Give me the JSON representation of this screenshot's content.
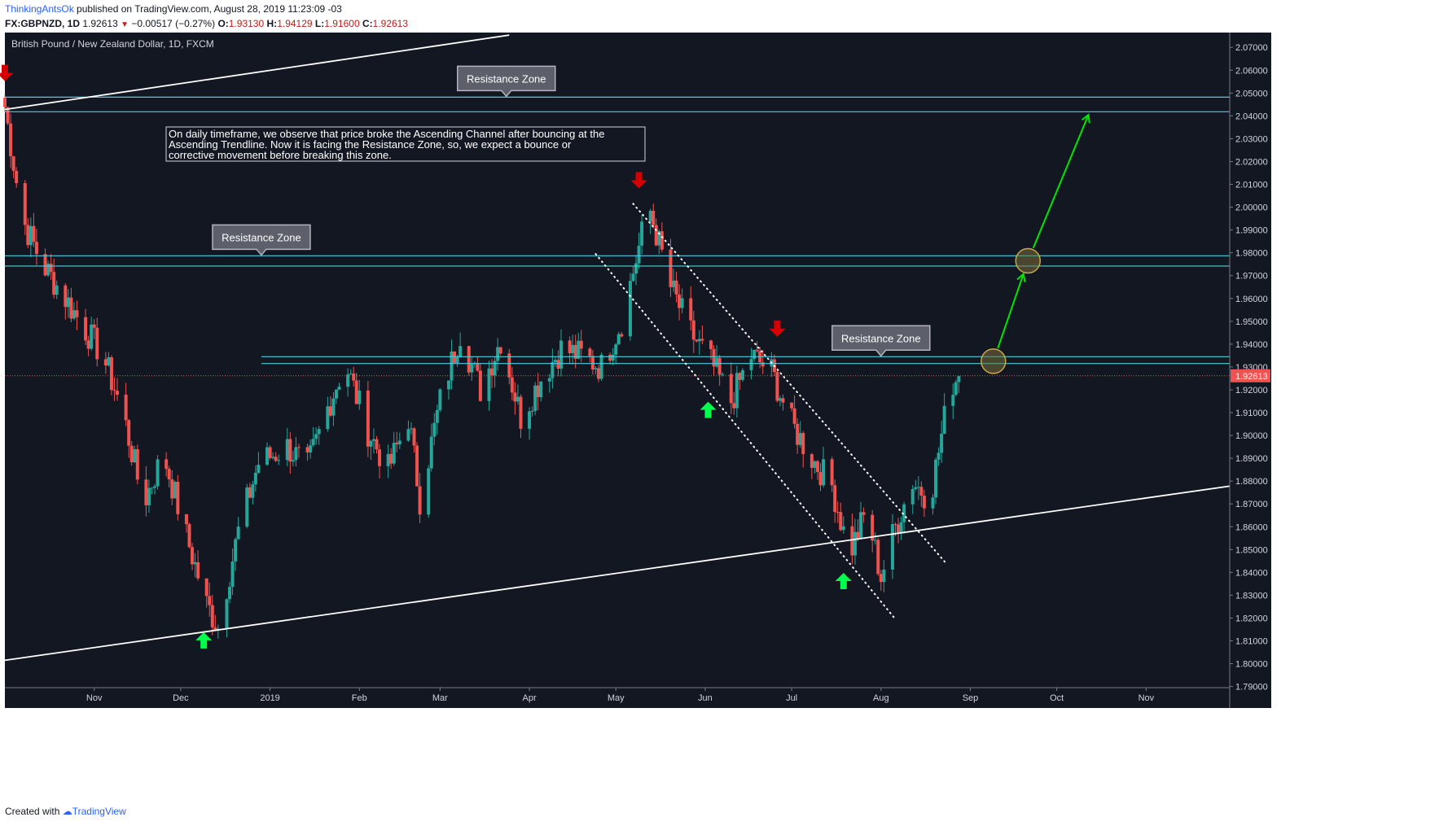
{
  "header": {
    "author": "ThinkingAntsOk",
    "published": "published on TradingView.com, August 28, 2019 11:23:09 -03",
    "symbol": "FX:GBPNZD, 1D",
    "last": "1.92613",
    "change": "−0.00517 (−0.27%)",
    "open_label": "O:",
    "open": "1.93130",
    "high_label": "H:",
    "high": "1.94129",
    "low_label": "L:",
    "low": "1.91600",
    "close_label": "C:",
    "close": "1.92613"
  },
  "footer": {
    "created_with": "Created with",
    "brand": "TradingView"
  },
  "colors": {
    "background": "#131722",
    "up": "#26a69a",
    "down": "#ef5350",
    "zone": "#4dd0e1",
    "trendline": "#ffffff",
    "projection": "#00e600",
    "signal_up": "#00ff4c",
    "signal_down": "#d50000",
    "price_tag": "#ef5350"
  },
  "chart_data": {
    "type": "candlestick",
    "title": "British Pound / New Zealand Dollar, 1D, FXCM",
    "x_ticks": [
      "Nov",
      "Dec",
      "2019",
      "Feb",
      "Mar",
      "Apr",
      "May",
      "Jun",
      "Jul",
      "Aug",
      "Sep",
      "Oct",
      "Nov"
    ],
    "y_ticks": [
      "2.07000",
      "2.06000",
      "2.05000",
      "2.04000",
      "2.03000",
      "2.02000",
      "2.01000",
      "2.00000",
      "1.99000",
      "1.98000",
      "1.97000",
      "1.96000",
      "1.95000",
      "1.94000",
      "1.93000",
      "1.92000",
      "1.91000",
      "1.90000",
      "1.89000",
      "1.88000",
      "1.87000",
      "1.86000",
      "1.85000",
      "1.84000",
      "1.83000",
      "1.82000",
      "1.81000",
      "1.80000",
      "1.79000"
    ],
    "ylim": [
      1.7895,
      2.0765
    ],
    "x_range": [
      "2018-10-01",
      "2019-11-30"
    ],
    "last_price": "1.92613",
    "anchors": [
      [
        "2018-10-01",
        2.044
      ],
      [
        "2018-10-07",
        1.995
      ],
      [
        "2018-10-14",
        1.975
      ],
      [
        "2018-10-21",
        1.962
      ],
      [
        "2018-10-28",
        1.948
      ],
      [
        "2018-11-04",
        1.935
      ],
      [
        "2018-11-11",
        1.91
      ],
      [
        "2018-11-18",
        1.87
      ],
      [
        "2018-11-25",
        1.892
      ],
      [
        "2018-12-02",
        1.86
      ],
      [
        "2018-12-10",
        1.826
      ],
      [
        "2018-12-14",
        1.816
      ],
      [
        "2018-12-21",
        1.858
      ],
      [
        "2018-12-28",
        1.888
      ],
      [
        "2019-01-07",
        1.895
      ],
      [
        "2019-01-14",
        1.886
      ],
      [
        "2019-01-21",
        1.912
      ],
      [
        "2019-01-27",
        1.932
      ],
      [
        "2019-02-04",
        1.902
      ],
      [
        "2019-02-11",
        1.885
      ],
      [
        "2019-02-18",
        1.908
      ],
      [
        "2019-02-22",
        1.872
      ],
      [
        "2019-03-01",
        1.915
      ],
      [
        "2019-03-08",
        1.945
      ],
      [
        "2019-03-15",
        1.92
      ],
      [
        "2019-03-22",
        1.942
      ],
      [
        "2019-03-29",
        1.908
      ],
      [
        "2019-04-05",
        1.925
      ],
      [
        "2019-04-12",
        1.938
      ],
      [
        "2019-04-19",
        1.935
      ],
      [
        "2019-04-26",
        1.93
      ],
      [
        "2019-05-03",
        1.95
      ],
      [
        "2019-05-10",
        1.988
      ],
      [
        "2019-05-13",
        1.998
      ],
      [
        "2019-05-20",
        1.965
      ],
      [
        "2019-05-27",
        1.945
      ],
      [
        "2019-06-03",
        1.932
      ],
      [
        "2019-06-10",
        1.915
      ],
      [
        "2019-06-17",
        1.935
      ],
      [
        "2019-06-24",
        1.928
      ],
      [
        "2019-07-01",
        1.905
      ],
      [
        "2019-07-08",
        1.89
      ],
      [
        "2019-07-15",
        1.878
      ],
      [
        "2019-07-21",
        1.848
      ],
      [
        "2019-07-27",
        1.867
      ],
      [
        "2019-08-01",
        1.838
      ],
      [
        "2019-08-06",
        1.86
      ],
      [
        "2019-08-12",
        1.88
      ],
      [
        "2019-08-18",
        1.872
      ],
      [
        "2019-08-22",
        1.9
      ],
      [
        "2019-08-25",
        1.922
      ],
      [
        "2019-08-28",
        1.926
      ]
    ],
    "zones": [
      {
        "label": "Resistance Zone",
        "lower": 2.0418,
        "upper": 2.0482,
        "x_start": "2018-10-01",
        "label_at": "2019-03-24"
      },
      {
        "label": "Resistance Zone",
        "lower": 1.9742,
        "upper": 1.9787,
        "x_start": "2018-10-01",
        "label_at": "2018-12-29"
      },
      {
        "label": "Resistance Zone",
        "lower": 1.9315,
        "upper": 1.9345,
        "x_start": "2018-12-29",
        "label_at": "2019-08-01"
      }
    ],
    "trendlines": [
      {
        "from": [
          "2018-10-01",
          1.8015
        ],
        "to": [
          "2019-11-30",
          1.8778
        ],
        "style": "solid"
      },
      {
        "from": [
          "2018-10-01",
          2.0428
        ],
        "to": [
          "2019-03-25",
          2.0754
        ],
        "style": "solid"
      }
    ],
    "channel_lines": [
      {
        "from": [
          "2019-04-24",
          1.9795
        ],
        "to": [
          "2019-08-06",
          1.8195
        ],
        "style": "dotted"
      },
      {
        "from": [
          "2019-05-07",
          2.0015
        ],
        "to": [
          "2019-08-24",
          1.8434
        ],
        "style": "dotted"
      }
    ],
    "projection": [
      [
        "2019-09-09",
        1.9325
      ],
      [
        "2019-09-21",
        1.9765
      ],
      [
        "2019-10-12",
        2.0405
      ]
    ],
    "signals": [
      {
        "date": "2018-12-09",
        "price": 1.8095,
        "direction": "up"
      },
      {
        "date": "2019-05-09",
        "price": 2.0125,
        "direction": "down"
      },
      {
        "date": "2019-06-02",
        "price": 1.9105,
        "direction": "up"
      },
      {
        "date": "2019-06-26",
        "price": 1.9475,
        "direction": "down"
      },
      {
        "date": "2019-07-19",
        "price": 1.8355,
        "direction": "up"
      },
      {
        "date": "2018-10-01",
        "price": 2.0595,
        "direction": "down"
      }
    ],
    "annotation": "On daily timeframe, we observe that price broke the Ascending Channel after bouncing at the Ascending Trendline. Now it is facing the Resistance Zone, so, we expect a bounce or corrective movement before breaking this zone.",
    "annotation_lines": [
      "On daily timeframe, we observe that price broke the Ascending Channel after bouncing at the",
      "Ascending Trendline. Now it is facing the Resistance Zone, so, we expect a bounce or",
      "corrective movement before breaking this zone."
    ]
  }
}
